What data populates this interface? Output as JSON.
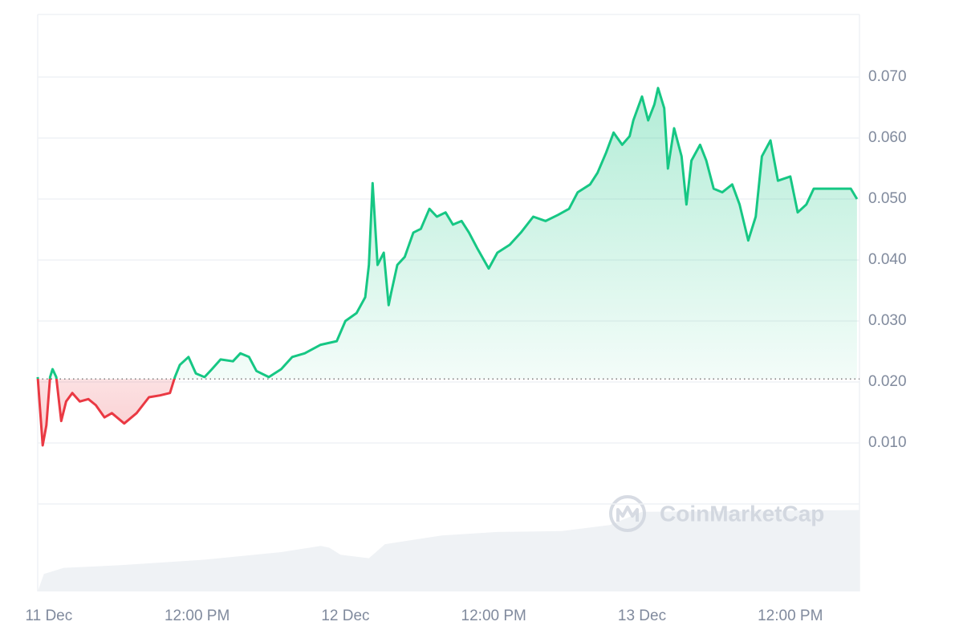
{
  "chart_data": {
    "type": "line",
    "watermark": "CoinMarketCap",
    "baseline": 0.0205,
    "xlim": [
      -0.9,
      65.6
    ],
    "xticks": [
      {
        "value": 0,
        "label": "11 Dec"
      },
      {
        "value": 12,
        "label": "12:00 PM"
      },
      {
        "value": 24,
        "label": "12 Dec"
      },
      {
        "value": 36,
        "label": "12:00 PM"
      },
      {
        "value": 48,
        "label": "13 Dec"
      },
      {
        "value": 60,
        "label": "12:00 PM"
      }
    ],
    "ylim": [
      0,
      0.08
    ],
    "yticks": [
      {
        "value": 0.01,
        "label": "0.010"
      },
      {
        "value": 0.02,
        "label": "0.020"
      },
      {
        "value": 0.03,
        "label": "0.030"
      },
      {
        "value": 0.04,
        "label": "0.040"
      },
      {
        "value": 0.05,
        "label": "0.050"
      },
      {
        "value": 0.06,
        "label": "0.060"
      },
      {
        "value": 0.07,
        "label": "0.070"
      }
    ],
    "grid": true,
    "series": [
      {
        "color": "#16c784",
        "down_color": "#ea3943",
        "x": [
          -0.9,
          -0.5,
          -0.2,
          0.1,
          0.3,
          0.6,
          1.0,
          1.4,
          1.9,
          2.5,
          3.2,
          3.8,
          4.5,
          5.1,
          6.1,
          7.1,
          8.1,
          9.0,
          9.8,
          10.2,
          10.6,
          11.3,
          11.9,
          12.6,
          13.2,
          13.9,
          14.9,
          15.5,
          16.2,
          16.8,
          17.8,
          18.8,
          19.7,
          20.7,
          22.0,
          23.3,
          24.0,
          24.9,
          25.6,
          25.9,
          26.2,
          26.6,
          27.1,
          27.5,
          27.7,
          28.2,
          28.8,
          29.5,
          30.1,
          30.8,
          31.4,
          32.1,
          32.7,
          33.4,
          34.0,
          34.7,
          35.6,
          36.3,
          37.3,
          38.2,
          39.2,
          40.2,
          41.2,
          42.1,
          42.8,
          43.8,
          44.4,
          45.1,
          45.7,
          46.4,
          47.0,
          47.3,
          48.0,
          48.5,
          49.0,
          49.3,
          49.8,
          50.1,
          50.6,
          51.2,
          51.6,
          52.0,
          52.7,
          53.2,
          53.8,
          54.5,
          55.3,
          55.9,
          56.6,
          57.2,
          57.7,
          58.4,
          59.0,
          60.0,
          60.6,
          61.3,
          61.9,
          62.9,
          63.9,
          64.9,
          65.4
        ],
        "values": [
          0.0208,
          0.0096,
          0.0129,
          0.0208,
          0.0221,
          0.0208,
          0.0136,
          0.0168,
          0.0182,
          0.0168,
          0.0172,
          0.0162,
          0.0142,
          0.0149,
          0.0132,
          0.0149,
          0.0175,
          0.0178,
          0.0182,
          0.0208,
          0.0228,
          0.0241,
          0.0214,
          0.0208,
          0.0221,
          0.0237,
          0.0234,
          0.0247,
          0.0241,
          0.0218,
          0.0208,
          0.0221,
          0.0241,
          0.0247,
          0.0261,
          0.0267,
          0.03,
          0.0313,
          0.0339,
          0.0392,
          0.0526,
          0.0392,
          0.0412,
          0.0326,
          0.0346,
          0.0392,
          0.0405,
          0.0445,
          0.0451,
          0.0484,
          0.0471,
          0.0478,
          0.0458,
          0.0464,
          0.0445,
          0.0418,
          0.0386,
          0.0412,
          0.0425,
          0.0445,
          0.0471,
          0.0464,
          0.0474,
          0.0484,
          0.0511,
          0.0524,
          0.0543,
          0.0576,
          0.0609,
          0.0589,
          0.0603,
          0.0629,
          0.0668,
          0.0629,
          0.0655,
          0.0682,
          0.0649,
          0.055,
          0.0616,
          0.057,
          0.0491,
          0.0563,
          0.0589,
          0.0563,
          0.0517,
          0.0511,
          0.0524,
          0.0491,
          0.0432,
          0.0471,
          0.057,
          0.0596,
          0.053,
          0.0537,
          0.0478,
          0.0491,
          0.0517,
          0.0517,
          0.0517,
          0.0517,
          0.05
        ]
      }
    ],
    "volume": {
      "color": "#eff2f5",
      "ylim": [
        0,
        100
      ],
      "x": [
        -0.9,
        -0.4,
        1.2,
        5.8,
        12.3,
        18.8,
        22.0,
        22.7,
        23.6,
        25.9,
        27.2,
        31.8,
        36.3,
        41.5,
        45.4,
        48.0,
        65.6
      ],
      "values": [
        0,
        20,
        27,
        30,
        36,
        45,
        52,
        50,
        42,
        38,
        54,
        64,
        68,
        69,
        76,
        91,
        93
      ]
    }
  }
}
